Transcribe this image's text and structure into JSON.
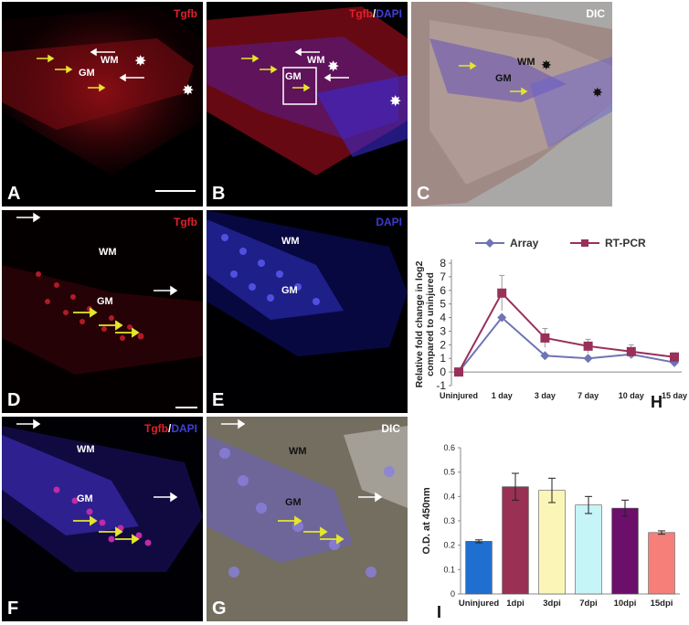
{
  "panels": {
    "A": {
      "letter": "A",
      "tag_a": "Tgfb",
      "tag_b": "",
      "tag_c": "",
      "wm": "WM",
      "gm": "GM"
    },
    "B": {
      "letter": "B",
      "tag_a": "Tgfb",
      "tag_b": "/",
      "tag_c": "DAPI",
      "wm": "WM",
      "gm": "GM"
    },
    "C": {
      "letter": "C",
      "tag_a": "DIC",
      "wm": "WM",
      "gm": "GM"
    },
    "D": {
      "letter": "D",
      "tag_a": "Tgfb",
      "wm": "WM",
      "gm": "GM"
    },
    "E": {
      "letter": "E",
      "tag_a": "DAPI",
      "wm": "WM",
      "gm": "GM"
    },
    "F": {
      "letter": "F",
      "tag_a": "Tgfb",
      "tag_b": "/",
      "tag_c": "DAPI",
      "wm": "WM",
      "gm": "GM"
    },
    "G": {
      "letter": "G",
      "tag_a": "DIC",
      "wm": "WM",
      "gm": "GM"
    },
    "H": {
      "letter": "H"
    },
    "I": {
      "letter": "I"
    }
  },
  "colors": {
    "tgfb": "#e0202a",
    "dapi": "#4040d8",
    "dic": "#ffffff",
    "arrow_yellow": "#e6e62a",
    "arrow_white": "#ffffff",
    "array": "#6e74b4",
    "rtpcr": "#98305a"
  },
  "chart_data": [
    {
      "type": "line",
      "categories": [
        "Uninjured",
        "1 day",
        "3 day",
        "7 day",
        "10 day",
        "15 day"
      ],
      "series": [
        {
          "name": "Array",
          "values": [
            0,
            4,
            1.2,
            1.0,
            1.3,
            0.7
          ],
          "errors": [
            0,
            0,
            0,
            0,
            0,
            0
          ],
          "color": "#6e74b4"
        },
        {
          "name": "RT-PCR",
          "values": [
            0,
            5.8,
            2.5,
            1.9,
            1.5,
            1.1
          ],
          "errors": [
            0,
            1.3,
            0.7,
            0.5,
            0.5,
            0.3
          ],
          "color": "#98305a"
        }
      ],
      "ylabel": "Relative fold change in log2 compared to uninjured",
      "ylim": [
        -1,
        8
      ],
      "yticks": [
        "-1",
        "0",
        "1",
        "2",
        "3",
        "4",
        "5",
        "6",
        "7",
        "8"
      ],
      "legend": "top"
    },
    {
      "type": "bar",
      "categories": [
        "Uninjured",
        "1dpi",
        "3dpi",
        "7dpi",
        "10dpi",
        "15dpi"
      ],
      "values": [
        0.216,
        0.44,
        0.425,
        0.365,
        0.352,
        0.252
      ],
      "errors": [
        0.006,
        0.055,
        0.05,
        0.035,
        0.033,
        0.007
      ],
      "colors": [
        "#1f6fd0",
        "#9a3154",
        "#fbf6b8",
        "#c6f4f7",
        "#6b0f6b",
        "#f77f7a"
      ],
      "ylabel": "O.D. at 450nm",
      "ylim": [
        0,
        0.6
      ],
      "yticks": [
        "0",
        "0.1",
        "0.2",
        "0.3",
        "0.4",
        "0.5",
        "0.6"
      ]
    }
  ]
}
